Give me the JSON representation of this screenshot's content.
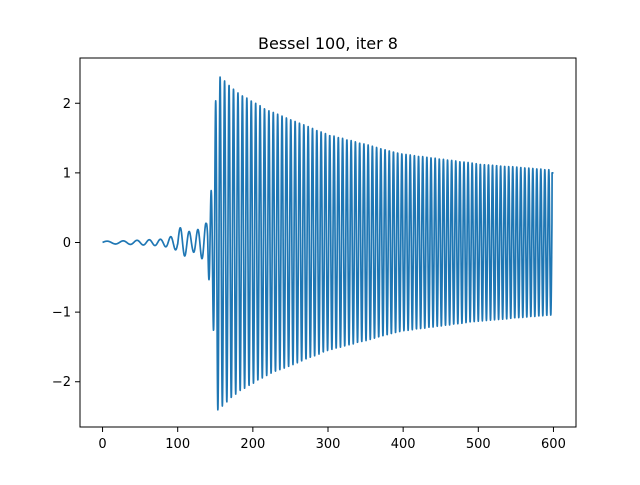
{
  "chart_data": {
    "type": "line",
    "title": "Bessel 100, iter 8",
    "xlabel": "",
    "ylabel": "",
    "xlim": [
      -30,
      630
    ],
    "ylim": [
      -2.65,
      2.65
    ],
    "x_ticks": [
      0,
      100,
      200,
      300,
      400,
      500,
      600
    ],
    "x_tick_labels": [
      "0",
      "100",
      "200",
      "300",
      "400",
      "500",
      "600"
    ],
    "y_ticks": [
      -2,
      -1,
      0,
      1,
      2
    ],
    "y_tick_labels": [
      "−2",
      "−1",
      "0",
      "1",
      "2"
    ],
    "grid": false,
    "series": [
      {
        "name": "Bessel 100, iter 8",
        "color": "#1f77b4",
        "x_range": [
          0,
          600
        ],
        "envelope_points": [
          {
            "x": 0,
            "amplitude": 0.03
          },
          {
            "x": 30,
            "amplitude": 0.04
          },
          {
            "x": 80,
            "amplitude": 0.08
          },
          {
            "x": 105,
            "amplitude": 0.22
          },
          {
            "x": 120,
            "amplitude": 0.13
          },
          {
            "x": 138,
            "amplitude": 0.28
          },
          {
            "x": 146,
            "amplitude": 0.85
          },
          {
            "x": 152,
            "amplitude": 2.42
          },
          {
            "x": 180,
            "amplitude": 2.15
          },
          {
            "x": 220,
            "amplitude": 1.9
          },
          {
            "x": 300,
            "amplitude": 1.55
          },
          {
            "x": 400,
            "amplitude": 1.27
          },
          {
            "x": 500,
            "amplitude": 1.13
          },
          {
            "x": 600,
            "amplitude": 1.04
          }
        ],
        "end_value": 1.0
      }
    ]
  }
}
